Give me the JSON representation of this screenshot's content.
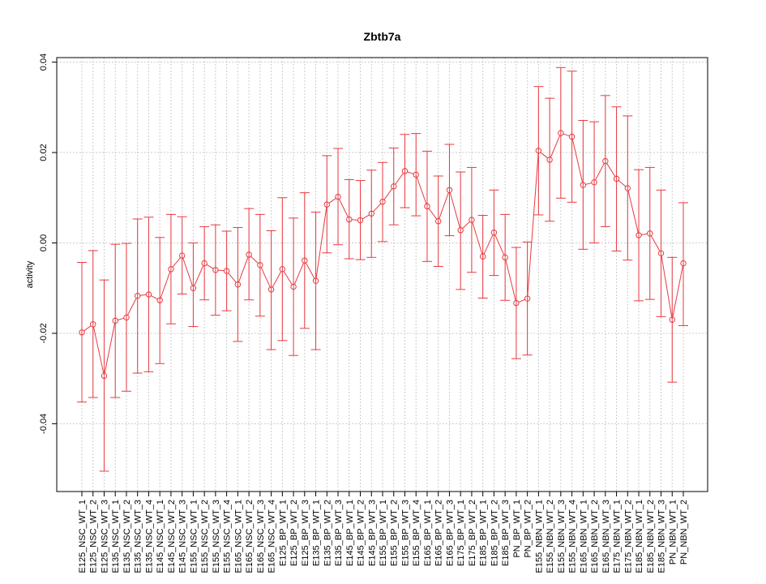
{
  "chart_data": {
    "type": "line",
    "title": "Zbtb7a",
    "xlabel": "",
    "ylabel": "activity",
    "ylim": [
      -0.055,
      0.041
    ],
    "y_ticks": [
      -0.04,
      -0.02,
      0.0,
      0.02,
      0.04
    ],
    "y_tick_labels": [
      "-0.04",
      "-0.02",
      "0.00",
      "0.02",
      "0.04"
    ],
    "grid": true,
    "reference_line_y": 0.0,
    "colors": {
      "series": "#e8393f",
      "grid": "#cccccc",
      "axis": "#000000"
    },
    "categories": [
      "E125_NSC_WT_1",
      "E125_NSC_WT_2",
      "E125_NSC_WT_3",
      "E135_NSC_WT_1",
      "E135_NSC_WT_2",
      "E135_NSC_WT_3",
      "E135_NSC_WT_4",
      "E145_NSC_WT_1",
      "E145_NSC_WT_2",
      "E145_NSC_WT_3",
      "E155_NSC_WT_1",
      "E155_NSC_WT_2",
      "E155_NSC_WT_3",
      "E155_NSC_WT_4",
      "E165_NSC_WT_1",
      "E165_NSC_WT_2",
      "E165_NSC_WT_3",
      "E165_NSC_WT_4",
      "E125_BP_WT_1",
      "E125_BP_WT_2",
      "E125_BP_WT_3",
      "E135_BP_WT_1",
      "E135_BP_WT_2",
      "E135_BP_WT_3",
      "E145_BP_WT_1",
      "E145_BP_WT_2",
      "E145_BP_WT_3",
      "E155_BP_WT_1",
      "E155_BP_WT_2",
      "E155_BP_WT_3",
      "E155_BP_WT_4",
      "E165_BP_WT_1",
      "E165_BP_WT_2",
      "E165_BP_WT_3",
      "E175_BP_WT_1",
      "E175_BP_WT_2",
      "E185_BP_WT_1",
      "E185_BP_WT_2",
      "E185_BP_WT_3",
      "PN_BP_WT_1",
      "PN_BP_WT_2",
      "E155_NBN_WT_1",
      "E155_NBN_WT_2",
      "E155_NBN_WT_3",
      "E155_NBN_WT_4",
      "E165_NBN_WT_1",
      "E165_NBN_WT_2",
      "E165_NBN_WT_3",
      "E175_NBN_WT_1",
      "E175_NBN_WT_2",
      "E185_NBN_WT_1",
      "E185_NBN_WT_2",
      "E185_NBN_WT_3",
      "PN_NBN_WT_1",
      "PN_NBN_WT_2"
    ],
    "series": [
      {
        "values": [
          -0.0198,
          -0.018,
          -0.0294,
          -0.0172,
          -0.0165,
          -0.0117,
          -0.0114,
          -0.0127,
          -0.0058,
          -0.0028,
          -0.01,
          -0.0045,
          -0.006,
          -0.0062,
          -0.0092,
          -0.0026,
          -0.0049,
          -0.0103,
          -0.0058,
          -0.0097,
          -0.0039,
          -0.0084,
          0.0085,
          0.0102,
          0.0052,
          0.005,
          0.0065,
          0.0091,
          0.0125,
          0.0159,
          0.0151,
          0.0081,
          0.0048,
          0.0117,
          0.0028,
          0.0051,
          -0.003,
          0.0023,
          -0.0032,
          -0.0133,
          -0.0123,
          0.0204,
          0.0184,
          0.0243,
          0.0235,
          0.0128,
          0.0134,
          0.0181,
          0.0142,
          0.0121,
          0.0017,
          0.0021,
          -0.0023,
          -0.017,
          -0.0045
        ],
        "lower": [
          -0.0352,
          -0.0342,
          -0.0505,
          -0.0342,
          -0.0328,
          -0.0288,
          -0.0285,
          -0.0267,
          -0.0179,
          -0.0113,
          -0.0185,
          -0.0126,
          -0.016,
          -0.015,
          -0.0218,
          -0.0126,
          -0.0162,
          -0.0236,
          -0.0216,
          -0.0249,
          -0.0189,
          -0.0236,
          -0.0022,
          -0.0004,
          -0.0035,
          -0.0037,
          -0.0032,
          0.0003,
          0.004,
          0.0078,
          0.006,
          -0.0041,
          -0.0052,
          0.0016,
          -0.0103,
          -0.0065,
          -0.0122,
          -0.0072,
          -0.0127,
          -0.0256,
          -0.0248,
          0.0062,
          0.0048,
          0.0099,
          0.009,
          -0.0014,
          0.0,
          0.0036,
          -0.0018,
          -0.0038,
          -0.0128,
          -0.0125,
          -0.0163,
          -0.0308,
          -0.0183
        ],
        "upper": [
          -0.0043,
          -0.0017,
          -0.0082,
          -0.0003,
          -0.0001,
          0.0053,
          0.0057,
          0.0012,
          0.0063,
          0.0058,
          0.0,
          0.0036,
          0.004,
          0.0026,
          0.0034,
          0.0076,
          0.0063,
          0.0027,
          0.01,
          0.0055,
          0.0111,
          0.0068,
          0.0193,
          0.0209,
          0.014,
          0.0138,
          0.0161,
          0.0178,
          0.021,
          0.024,
          0.0242,
          0.0203,
          0.0148,
          0.0218,
          0.0157,
          0.0167,
          0.0061,
          0.0117,
          0.0063,
          -0.001,
          0.0002,
          0.0346,
          0.032,
          0.0388,
          0.038,
          0.0271,
          0.0268,
          0.0326,
          0.0301,
          0.0281,
          0.0162,
          0.0167,
          0.0117,
          -0.0032,
          0.0089
        ]
      }
    ]
  }
}
